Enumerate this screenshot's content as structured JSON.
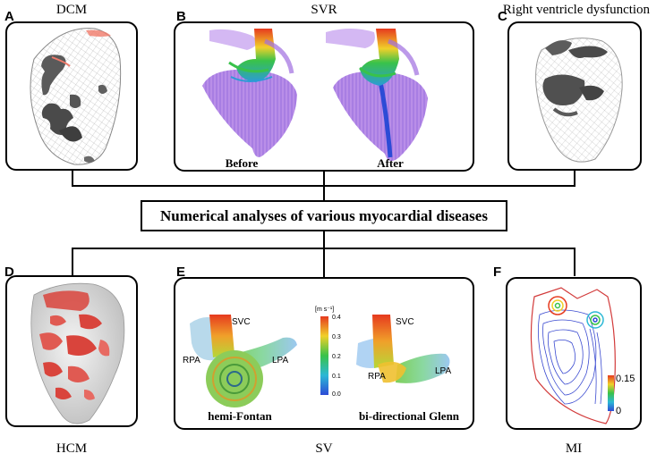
{
  "panels": {
    "A": {
      "letter": "A",
      "title": "DCM"
    },
    "B": {
      "letter": "B",
      "title": "SVR",
      "before": "Before",
      "after": "After"
    },
    "C": {
      "letter": "C",
      "title": "Right ventricle dysfunction"
    },
    "D": {
      "letter": "D",
      "title": "HCM"
    },
    "E": {
      "letter": "E",
      "title": "SV",
      "left_caption": "hemi-Fontan",
      "right_caption": "bi-directional Glenn",
      "svc": "SVC",
      "rpa": "RPA",
      "lpa": "LPA",
      "colorbar": {
        "unit": "[m s⁻¹]",
        "ticks": [
          "0.4",
          "0.3",
          "0.2",
          "0.1",
          "0.0"
        ]
      }
    },
    "F": {
      "letter": "F",
      "title": "MI",
      "colorbar_ticks": [
        "0.15",
        "0"
      ]
    }
  },
  "center": {
    "label": "Numerical analyses of various myocardial diseases"
  },
  "colors": {
    "flow_red": "#e63a1e",
    "flow_green": "#39c24a",
    "flow_blue": "#2c4bd6",
    "tissue_red": "#d9443c",
    "purple_tissue": "#b98ee8",
    "mesh_gray": "#9a9a9a"
  }
}
